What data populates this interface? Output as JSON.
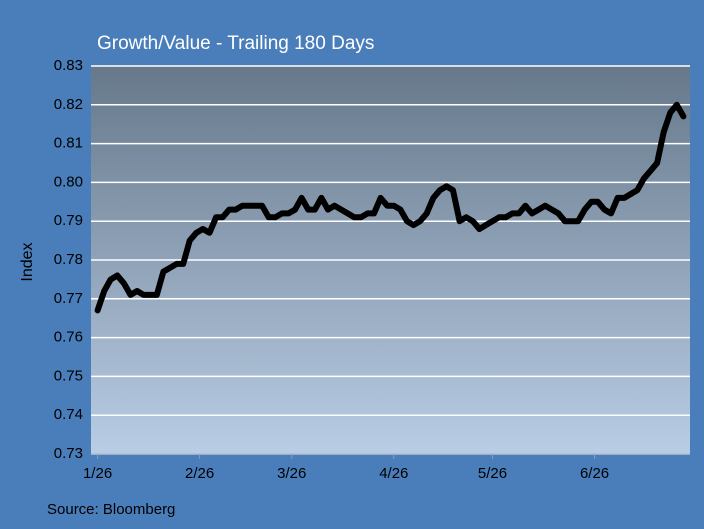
{
  "chart_data": {
    "type": "line",
    "title": "Growth/Value - Trailing 180 Days",
    "y_label": "Index",
    "source": "Source: Bloomberg",
    "x": [
      0,
      2,
      4,
      6,
      8,
      10,
      12,
      14,
      16,
      18,
      20,
      22,
      24,
      26,
      28,
      30,
      32,
      34,
      36,
      38,
      40,
      42,
      44,
      46,
      48,
      50,
      52,
      54,
      56,
      58,
      60,
      62,
      64,
      66,
      68,
      70,
      72,
      74,
      76,
      78,
      80,
      82,
      84,
      86,
      88,
      90,
      92,
      94,
      96,
      98,
      100,
      102,
      104,
      106,
      108,
      110,
      112,
      114,
      116,
      118,
      120,
      122,
      124,
      126,
      128,
      130,
      132,
      134,
      136,
      138,
      140,
      142,
      144,
      146,
      148,
      150,
      152,
      154,
      156,
      158,
      160,
      162,
      164,
      166,
      168,
      170,
      172,
      174,
      176,
      178
    ],
    "series": [
      {
        "name": "Growth/Value",
        "color": "#000000",
        "values": [
          0.767,
          0.772,
          0.775,
          0.776,
          0.774,
          0.771,
          0.772,
          0.771,
          0.771,
          0.771,
          0.777,
          0.778,
          0.779,
          0.779,
          0.785,
          0.787,
          0.788,
          0.787,
          0.791,
          0.791,
          0.793,
          0.793,
          0.794,
          0.794,
          0.794,
          0.794,
          0.791,
          0.791,
          0.792,
          0.792,
          0.793,
          0.796,
          0.793,
          0.793,
          0.796,
          0.793,
          0.794,
          0.793,
          0.792,
          0.791,
          0.791,
          0.792,
          0.792,
          0.796,
          0.794,
          0.794,
          0.793,
          0.79,
          0.789,
          0.79,
          0.792,
          0.796,
          0.798,
          0.799,
          0.798,
          0.79,
          0.791,
          0.79,
          0.788,
          0.789,
          0.79,
          0.791,
          0.791,
          0.792,
          0.792,
          0.794,
          0.792,
          0.793,
          0.794,
          0.793,
          0.792,
          0.79,
          0.79,
          0.79,
          0.793,
          0.795,
          0.795,
          0.793,
          0.792,
          0.796,
          0.796,
          0.797,
          0.798,
          0.801,
          0.803,
          0.805,
          0.813,
          0.818,
          0.82,
          0.817
        ]
      }
    ],
    "xlim": [
      -2,
      180
    ],
    "xticks": [
      {
        "value": 0,
        "label": "1/26"
      },
      {
        "value": 31,
        "label": "2/26"
      },
      {
        "value": 59,
        "label": "3/26"
      },
      {
        "value": 90,
        "label": "4/26"
      },
      {
        "value": 120,
        "label": "5/26"
      },
      {
        "value": 151,
        "label": "6/26"
      }
    ],
    "ylim": [
      0.73,
      0.83
    ],
    "yticks": [
      0.73,
      0.74,
      0.75,
      0.76,
      0.77,
      0.78,
      0.79,
      {
        "value": 0.8,
        "label": "0.80"
      },
      0.81,
      0.82,
      0.83
    ],
    "grid": true
  }
}
